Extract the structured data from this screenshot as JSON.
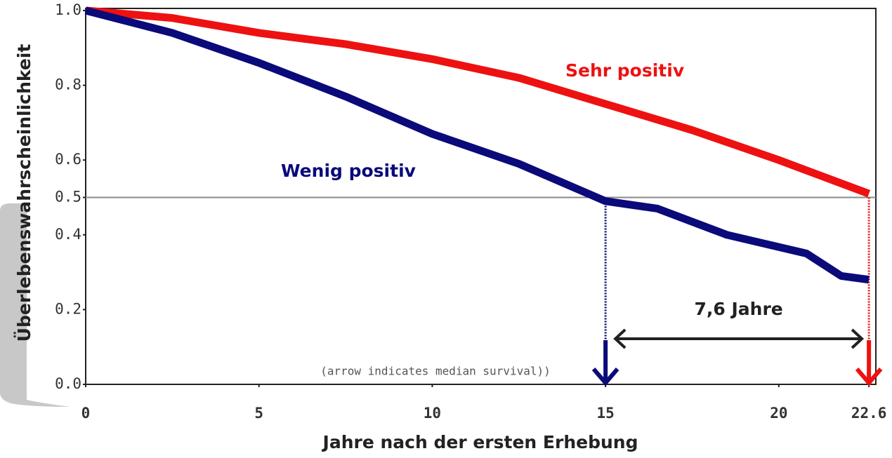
{
  "chart_data": {
    "type": "line",
    "xlabel": "Jahre nach der ersten Erhebung",
    "ylabel": "Überlebenswahrscheinlichkeit",
    "xlim": [
      0,
      22.8
    ],
    "ylim": [
      0,
      1
    ],
    "xticks": [
      0,
      5,
      10,
      15,
      20,
      22.6
    ],
    "yticks": [
      {
        "value": 0,
        "label": "0.0"
      },
      0.2,
      0.4,
      0.5,
      0.6,
      0.8,
      {
        "value": 1,
        "label": "1.0"
      }
    ],
    "hline": 0.5,
    "series": [
      {
        "name": "Sehr positiv",
        "color": "#ee1111",
        "median": 22.6,
        "x": [
          0,
          2.5,
          5,
          7.5,
          10,
          12.5,
          15,
          17.5,
          20,
          22.6
        ],
        "values": [
          1.0,
          0.98,
          0.94,
          0.91,
          0.87,
          0.82,
          0.75,
          0.68,
          0.6,
          0.51
        ]
      },
      {
        "name": "Wenig positiv",
        "color": "#0a0a7a",
        "median": 15,
        "x": [
          0,
          2.5,
          5,
          7.5,
          10,
          12.5,
          15,
          16.5,
          18.5,
          20.8,
          21.8,
          22.6
        ],
        "values": [
          1.0,
          0.94,
          0.86,
          0.77,
          0.67,
          0.59,
          0.49,
          0.47,
          0.4,
          0.35,
          0.29,
          0.28
        ]
      }
    ],
    "annotations": [
      "7,6 Jahre",
      "(arrow indicates median survival))"
    ]
  }
}
